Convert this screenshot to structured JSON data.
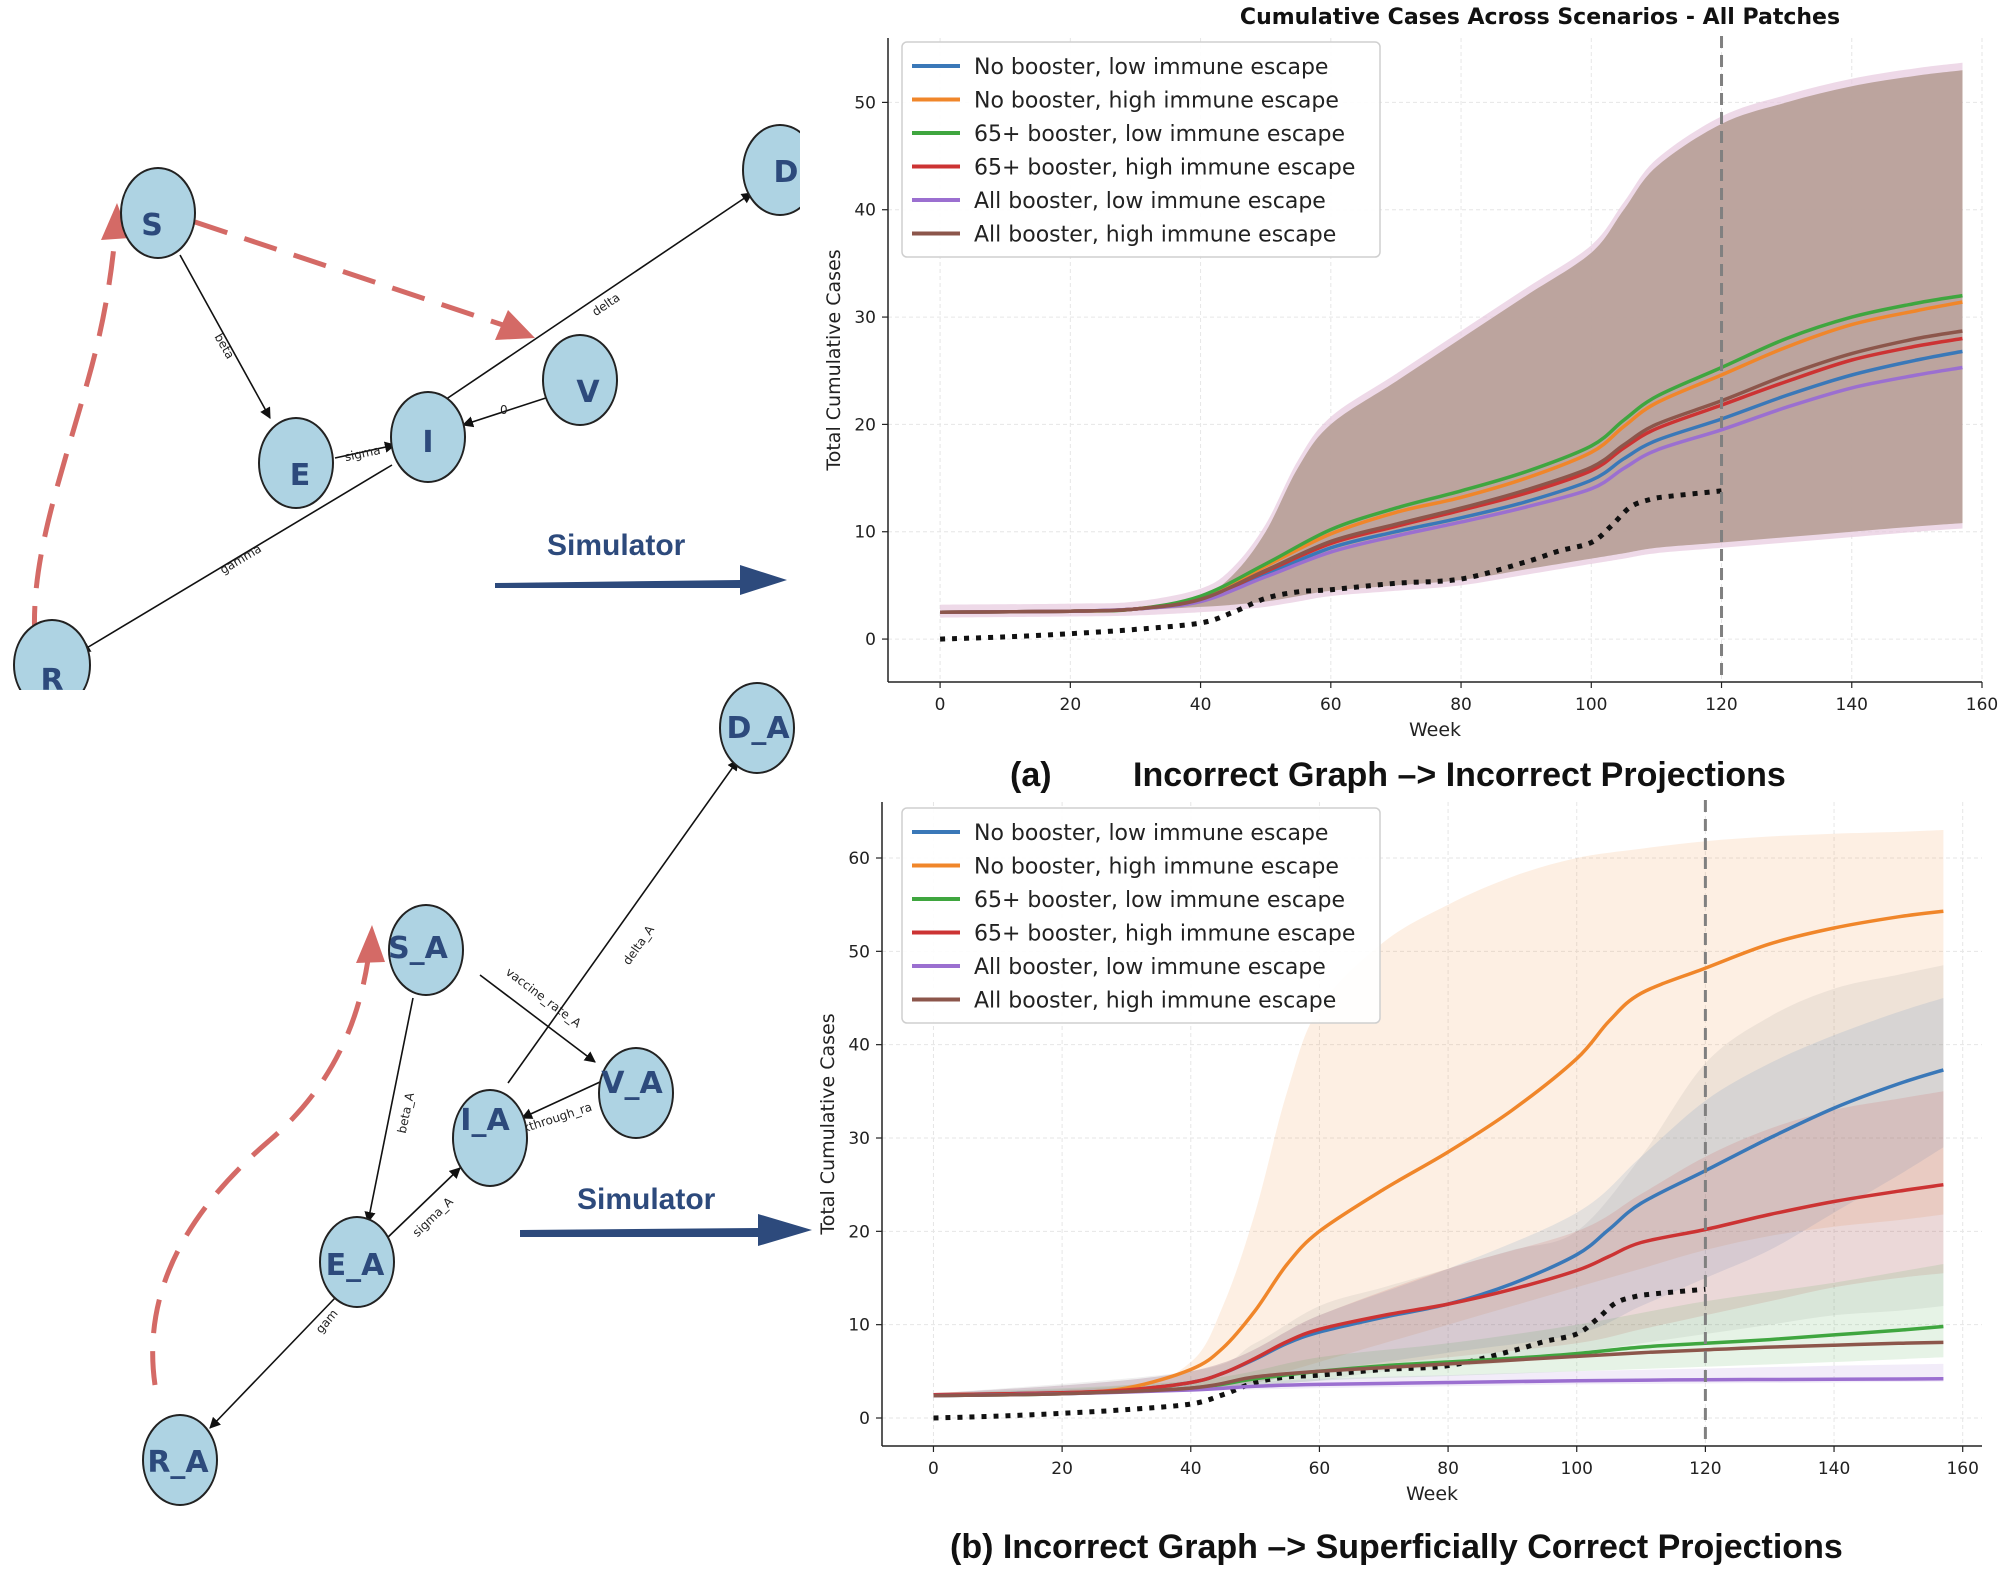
{
  "graph_a": {
    "nodes": [
      "S",
      "E",
      "I",
      "V",
      "D",
      "R"
    ],
    "edge_labels": [
      "beta",
      "sigma",
      "0",
      "delta",
      "gamma"
    ],
    "arrow_label": "Simulator"
  },
  "graph_b": {
    "nodes": [
      "S_A",
      "E_A",
      "I_A",
      "V_A",
      "D_A",
      "R_A"
    ],
    "edge_labels": [
      "vaccine_rate_A",
      "beta_A",
      "sigma_A",
      "kthrough_ra",
      "delta_A",
      "gam"
    ],
    "arrow_label": "Simulator"
  },
  "captions": {
    "a_letter": "(a)",
    "a_text": "Incorrect Graph –> Incorrect Projections",
    "b_text": "(b) Incorrect Graph –> Superficially Correct Projections"
  },
  "colors": {
    "blue": "#3a78b8",
    "orange": "#f0862a",
    "green": "#3fa63f",
    "red": "#cc3333",
    "purple": "#9b6fd0",
    "brown": "#8c564b",
    "node_fill": "#aed3e3",
    "graph_arrow": "#2d4a7c",
    "dashed_arrow": "#d46a66"
  },
  "chart_data": [
    {
      "type": "line",
      "title": "Cumulative Cases Across Scenarios - All Patches",
      "xlabel": "Week",
      "ylabel": "Total Cumulative Cases",
      "xlim": [
        -8,
        160
      ],
      "ylim": [
        -4,
        56
      ],
      "xticks": [
        0,
        20,
        40,
        60,
        80,
        100,
        120,
        140,
        160
      ],
      "xtick_labels": [
        "0",
        "20",
        "40",
        "60",
        "80",
        "100",
        "120",
        "140",
        "160"
      ],
      "yticks": [
        0,
        10,
        20,
        30,
        40,
        50
      ],
      "ytick_labels": [
        "0",
        "10",
        "20",
        "30",
        "40",
        "50"
      ],
      "vline": 120,
      "band": {
        "x": [
          0,
          20,
          30,
          40,
          45,
          50,
          55,
          60,
          70,
          80,
          90,
          100,
          105,
          110,
          120,
          130,
          140,
          150,
          157
        ],
        "upper": [
          2.5,
          2.6,
          2.8,
          4,
          6,
          10,
          16,
          20,
          24,
          28,
          32,
          36,
          40,
          44,
          48,
          50,
          51.5,
          52.5,
          53
        ],
        "lower": [
          2.5,
          2.6,
          2.7,
          3,
          3.2,
          3.5,
          4,
          4.5,
          5,
          5.5,
          6.5,
          7.5,
          8,
          8.5,
          9,
          9.5,
          10,
          10.5,
          10.8
        ]
      },
      "series": [
        {
          "name": "No booster, low immune escape",
          "color": "#3a78b8",
          "x": [
            0,
            20,
            30,
            40,
            50,
            60,
            70,
            80,
            90,
            100,
            105,
            110,
            120,
            130,
            140,
            150,
            157
          ],
          "y": [
            2.5,
            2.6,
            2.8,
            3.6,
            6,
            8.5,
            10,
            11.3,
            12.8,
            14.8,
            16.8,
            18.5,
            20.5,
            22.7,
            24.6,
            26,
            26.8
          ]
        },
        {
          "name": "No booster, high immune escape",
          "color": "#f0862a",
          "x": [
            0,
            20,
            30,
            40,
            50,
            60,
            70,
            80,
            90,
            100,
            105,
            110,
            120,
            130,
            140,
            150,
            157
          ],
          "y": [
            2.5,
            2.6,
            2.8,
            3.9,
            6.8,
            9.8,
            11.8,
            13.2,
            15,
            17.4,
            19.8,
            22,
            24.6,
            27.2,
            29.3,
            30.6,
            31.4
          ]
        },
        {
          "name": "65+ booster, low immune escape",
          "color": "#3fa63f",
          "x": [
            0,
            20,
            30,
            40,
            50,
            60,
            70,
            80,
            90,
            100,
            105,
            110,
            120,
            130,
            140,
            150,
            157
          ],
          "y": [
            2.5,
            2.6,
            2.8,
            4,
            7,
            10.2,
            12.2,
            13.8,
            15.6,
            18,
            20.4,
            22.6,
            25.3,
            28,
            30,
            31.3,
            32
          ]
        },
        {
          "name": "65+ booster, high immune escape",
          "color": "#cc3333",
          "x": [
            0,
            20,
            30,
            40,
            50,
            60,
            70,
            80,
            90,
            100,
            105,
            110,
            120,
            130,
            140,
            150,
            157
          ],
          "y": [
            2.5,
            2.6,
            2.8,
            3.7,
            6.3,
            8.9,
            10.5,
            12,
            13.6,
            15.7,
            17.8,
            19.6,
            21.8,
            24,
            26,
            27.3,
            28
          ]
        },
        {
          "name": "All booster, low immune escape",
          "color": "#9b6fd0",
          "x": [
            0,
            20,
            30,
            40,
            50,
            60,
            70,
            80,
            90,
            100,
            105,
            110,
            120,
            130,
            140,
            150,
            157
          ],
          "y": [
            2.5,
            2.6,
            2.8,
            3.5,
            5.8,
            8.1,
            9.6,
            10.9,
            12.3,
            14,
            15.9,
            17.6,
            19.5,
            21.6,
            23.4,
            24.6,
            25.3
          ]
        },
        {
          "name": "All booster, high immune escape",
          "color": "#8c564b",
          "x": [
            0,
            20,
            30,
            40,
            50,
            60,
            70,
            80,
            90,
            100,
            105,
            110,
            120,
            130,
            140,
            150,
            157
          ],
          "y": [
            2.5,
            2.6,
            2.8,
            3.7,
            6.4,
            9.1,
            10.7,
            12.2,
            13.9,
            16,
            18.1,
            20,
            22.2,
            24.6,
            26.6,
            28,
            28.7
          ]
        }
      ],
      "observed": {
        "x": [
          0,
          10,
          20,
          30,
          40,
          45,
          50,
          55,
          60,
          70,
          80,
          90,
          95,
          100,
          103,
          106,
          109,
          112,
          120
        ],
        "y": [
          0,
          0.2,
          0.5,
          0.9,
          1.5,
          2.5,
          3.8,
          4.4,
          4.6,
          5.2,
          5.6,
          7.2,
          8.2,
          9,
          10.5,
          12.3,
          13,
          13.3,
          13.8
        ]
      }
    },
    {
      "type": "line",
      "title": "",
      "xlabel": "Week",
      "ylabel": "Total Cumulative Cases",
      "xlim": [
        -8,
        163
      ],
      "ylim": [
        -3,
        66
      ],
      "xticks": [
        0,
        20,
        40,
        60,
        80,
        100,
        120,
        140,
        160
      ],
      "xtick_labels": [
        "0",
        "20",
        "40",
        "60",
        "80",
        "100",
        "120",
        "140",
        "160"
      ],
      "yticks": [
        0,
        10,
        20,
        30,
        40,
        50,
        60
      ],
      "ytick_labels": [
        "0",
        "10",
        "20",
        "30",
        "40",
        "50",
        "60"
      ],
      "vline": 120,
      "bands": [
        {
          "color": "#f0862a",
          "x": [
            0,
            30,
            40,
            45,
            50,
            55,
            60,
            70,
            80,
            90,
            100,
            110,
            120,
            130,
            140,
            150,
            157
          ],
          "upper": [
            2.6,
            3.5,
            6,
            12,
            22,
            35,
            44,
            51,
            55,
            58,
            60,
            61,
            61.8,
            62.3,
            62.6,
            62.8,
            63
          ],
          "lower": [
            2.4,
            2.8,
            3.2,
            3.6,
            4,
            5,
            6,
            8,
            10,
            12,
            14,
            16,
            18,
            19.5,
            20.5,
            21.2,
            21.8
          ]
        },
        {
          "color": "#888888",
          "x": [
            0,
            40,
            50,
            60,
            70,
            80,
            90,
            100,
            110,
            120,
            130,
            140,
            150,
            157
          ],
          "upper": [
            2.6,
            5,
            8,
            12,
            14,
            16,
            18,
            20,
            28,
            38,
            43,
            46,
            47.5,
            48.5
          ],
          "lower": [
            2.4,
            3,
            3.5,
            4,
            5,
            5.5,
            6,
            7,
            8,
            9,
            10,
            11,
            11.5,
            12
          ]
        },
        {
          "color": "#3a78b8",
          "x": [
            0,
            40,
            60,
            80,
            100,
            110,
            120,
            130,
            140,
            150,
            157
          ],
          "upper": [
            2.6,
            5,
            11,
            16,
            22,
            28,
            34,
            38,
            41,
            43.5,
            45
          ],
          "lower": [
            2.4,
            3,
            5,
            7,
            9,
            12,
            15,
            18,
            22,
            26,
            29
          ]
        },
        {
          "color": "#cc3333",
          "x": [
            0,
            40,
            60,
            80,
            100,
            110,
            120,
            130,
            140,
            150,
            157
          ],
          "upper": [
            2.6,
            5,
            11,
            16,
            20,
            24,
            28,
            31,
            33,
            34.2,
            35
          ],
          "lower": [
            2.4,
            3,
            5,
            6.5,
            8,
            9.5,
            11,
            12.5,
            14,
            15,
            15.5
          ]
        },
        {
          "color": "#3fa63f",
          "x": [
            0,
            40,
            60,
            80,
            100,
            120,
            140,
            157
          ],
          "upper": [
            2.6,
            4,
            6.5,
            8,
            10,
            12.5,
            14.5,
            16.5
          ],
          "lower": [
            2.4,
            3,
            4,
            4.5,
            5,
            5.5,
            6,
            6.5
          ]
        },
        {
          "color": "#9b6fd0",
          "x": [
            0,
            40,
            60,
            80,
            100,
            120,
            140,
            157
          ],
          "upper": [
            2.6,
            3.5,
            4.2,
            4.6,
            5,
            5.3,
            5.6,
            5.8
          ],
          "lower": [
            2.4,
            2.9,
            3.2,
            3.4,
            3.6,
            3.7,
            3.8,
            3.9
          ]
        }
      ],
      "series": [
        {
          "name": "No booster, low immune escape",
          "color": "#3a78b8",
          "x": [
            0,
            20,
            30,
            40,
            45,
            50,
            55,
            60,
            70,
            80,
            90,
            100,
            105,
            110,
            120,
            130,
            140,
            150,
            157
          ],
          "y": [
            2.5,
            2.7,
            3,
            3.8,
            4.8,
            6.3,
            8,
            9.2,
            10.8,
            12.2,
            14.4,
            17.5,
            20.2,
            23,
            26.5,
            30,
            33.2,
            35.8,
            37.3
          ]
        },
        {
          "name": "No booster, high immune escape",
          "color": "#f0862a",
          "x": [
            0,
            20,
            30,
            40,
            45,
            50,
            55,
            60,
            70,
            80,
            90,
            100,
            105,
            110,
            120,
            130,
            140,
            150,
            157
          ],
          "y": [
            2.5,
            2.7,
            3.2,
            5.2,
            7.5,
            11.5,
            16.5,
            20,
            24.5,
            28.5,
            33,
            38.5,
            42.5,
            45.5,
            48.2,
            50.8,
            52.5,
            53.7,
            54.3
          ]
        },
        {
          "name": "65+ booster, low immune escape",
          "color": "#3fa63f",
          "x": [
            0,
            20,
            40,
            50,
            60,
            70,
            80,
            90,
            100,
            110,
            120,
            130,
            140,
            150,
            157
          ],
          "y": [
            2.4,
            2.6,
            3.2,
            4.2,
            5,
            5.6,
            6,
            6.4,
            6.9,
            7.6,
            8,
            8.4,
            8.9,
            9.4,
            9.8
          ]
        },
        {
          "name": "65+ booster, high immune escape",
          "color": "#cc3333",
          "x": [
            0,
            20,
            30,
            40,
            45,
            50,
            55,
            60,
            70,
            80,
            90,
            100,
            105,
            110,
            120,
            130,
            140,
            150,
            157
          ],
          "y": [
            2.5,
            2.7,
            3,
            3.8,
            4.8,
            6.4,
            8.2,
            9.5,
            11,
            12.2,
            13.8,
            15.8,
            17.3,
            18.8,
            20.2,
            21.8,
            23.2,
            24.3,
            25
          ]
        },
        {
          "name": "All booster, low immune escape",
          "color": "#9b6fd0",
          "x": [
            0,
            20,
            40,
            50,
            60,
            80,
            100,
            120,
            140,
            157
          ],
          "y": [
            2.4,
            2.6,
            3,
            3.4,
            3.6,
            3.8,
            4,
            4.1,
            4.15,
            4.2
          ]
        },
        {
          "name": "All booster, high immune escape",
          "color": "#8c564b",
          "x": [
            0,
            20,
            40,
            50,
            60,
            70,
            80,
            90,
            100,
            110,
            120,
            130,
            140,
            150,
            157
          ],
          "y": [
            2.4,
            2.6,
            3.2,
            4.4,
            5,
            5.4,
            5.8,
            6.2,
            6.6,
            7,
            7.3,
            7.6,
            7.8,
            8,
            8.1
          ]
        }
      ],
      "observed": {
        "x": [
          0,
          10,
          20,
          30,
          40,
          45,
          50,
          55,
          60,
          70,
          80,
          90,
          95,
          100,
          103,
          106,
          109,
          112,
          120
        ],
        "y": [
          0,
          0.2,
          0.5,
          0.9,
          1.5,
          2.5,
          3.8,
          4.4,
          4.6,
          5.2,
          5.6,
          7.2,
          8.2,
          9,
          10.5,
          12.3,
          13,
          13.3,
          13.8
        ]
      }
    }
  ]
}
